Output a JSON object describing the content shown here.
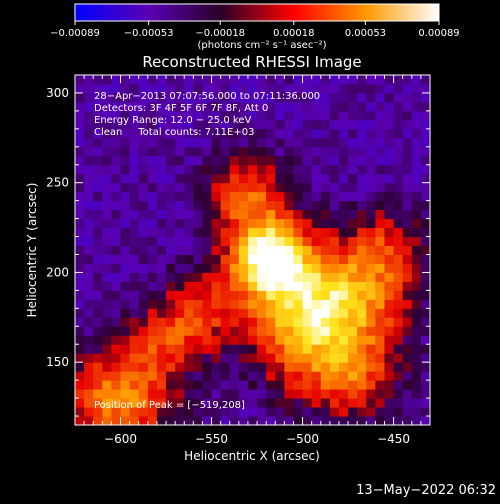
{
  "chart_data": {
    "type": "heatmap",
    "title": "Reconstructed RHESSI Image",
    "xlabel": "Heliocentric X (arcsec)",
    "ylabel": "Heliocentric Y (arcsec)",
    "xlim": [
      -625,
      -430
    ],
    "ylim": [
      115,
      310
    ],
    "xticks": [
      -600,
      -550,
      -500,
      -450
    ],
    "xtick_labels": [
      "−600",
      "−550",
      "−500",
      "−450"
    ],
    "yticks": [
      150,
      200,
      250,
      300
    ],
    "ytick_labels": [
      "150",
      "200",
      "250",
      "300"
    ],
    "colorbar": {
      "ticks": [
        -0.00089,
        -0.00053,
        -0.00018,
        0.00018,
        0.00053,
        0.00089
      ],
      "tick_labels": [
        "−0.00089",
        "−0.00053",
        "−0.00018",
        "0.00018",
        "0.00053",
        "0.00089"
      ],
      "unit_label": "(photons cm⁻² s⁻¹ asec⁻²)",
      "colors": [
        "#0000ff",
        "#5a00b4",
        "#2a0028",
        "#ff0000",
        "#ff9900",
        "#ffffff"
      ]
    },
    "info_lines": [
      "28−Apr−2013 07:07:56.000 to 07:11:36.000",
      "Detectors: 3F 4F 5F 6F 7F 8F, Att 0",
      "Energy Range: 12.0 − 25.0 keV",
      "Clean     Total counts: 7.11E+03"
    ],
    "peak_text": "Position of Peak = [−519,208]",
    "peak": [
      -519,
      208
    ],
    "sources": [
      {
        "x": -519,
        "y": 208,
        "sigma": 14,
        "amp": 1.0
      },
      {
        "x": -500,
        "y": 188,
        "sigma": 22,
        "amp": 0.6
      },
      {
        "x": -530,
        "y": 242,
        "sigma": 16,
        "amp": 0.55
      },
      {
        "x": -495,
        "y": 160,
        "sigma": 22,
        "amp": 0.5
      },
      {
        "x": -465,
        "y": 185,
        "sigma": 20,
        "amp": 0.45
      },
      {
        "x": -455,
        "y": 215,
        "sigma": 16,
        "amp": 0.35
      },
      {
        "x": -555,
        "y": 180,
        "sigma": 16,
        "amp": 0.4
      },
      {
        "x": -600,
        "y": 130,
        "sigma": 20,
        "amp": 0.7
      },
      {
        "x": -575,
        "y": 162,
        "sigma": 14,
        "amp": 0.35
      },
      {
        "x": -470,
        "y": 140,
        "sigma": 16,
        "amp": 0.4
      }
    ]
  },
  "timestamp": "13−May−2022 06:32"
}
